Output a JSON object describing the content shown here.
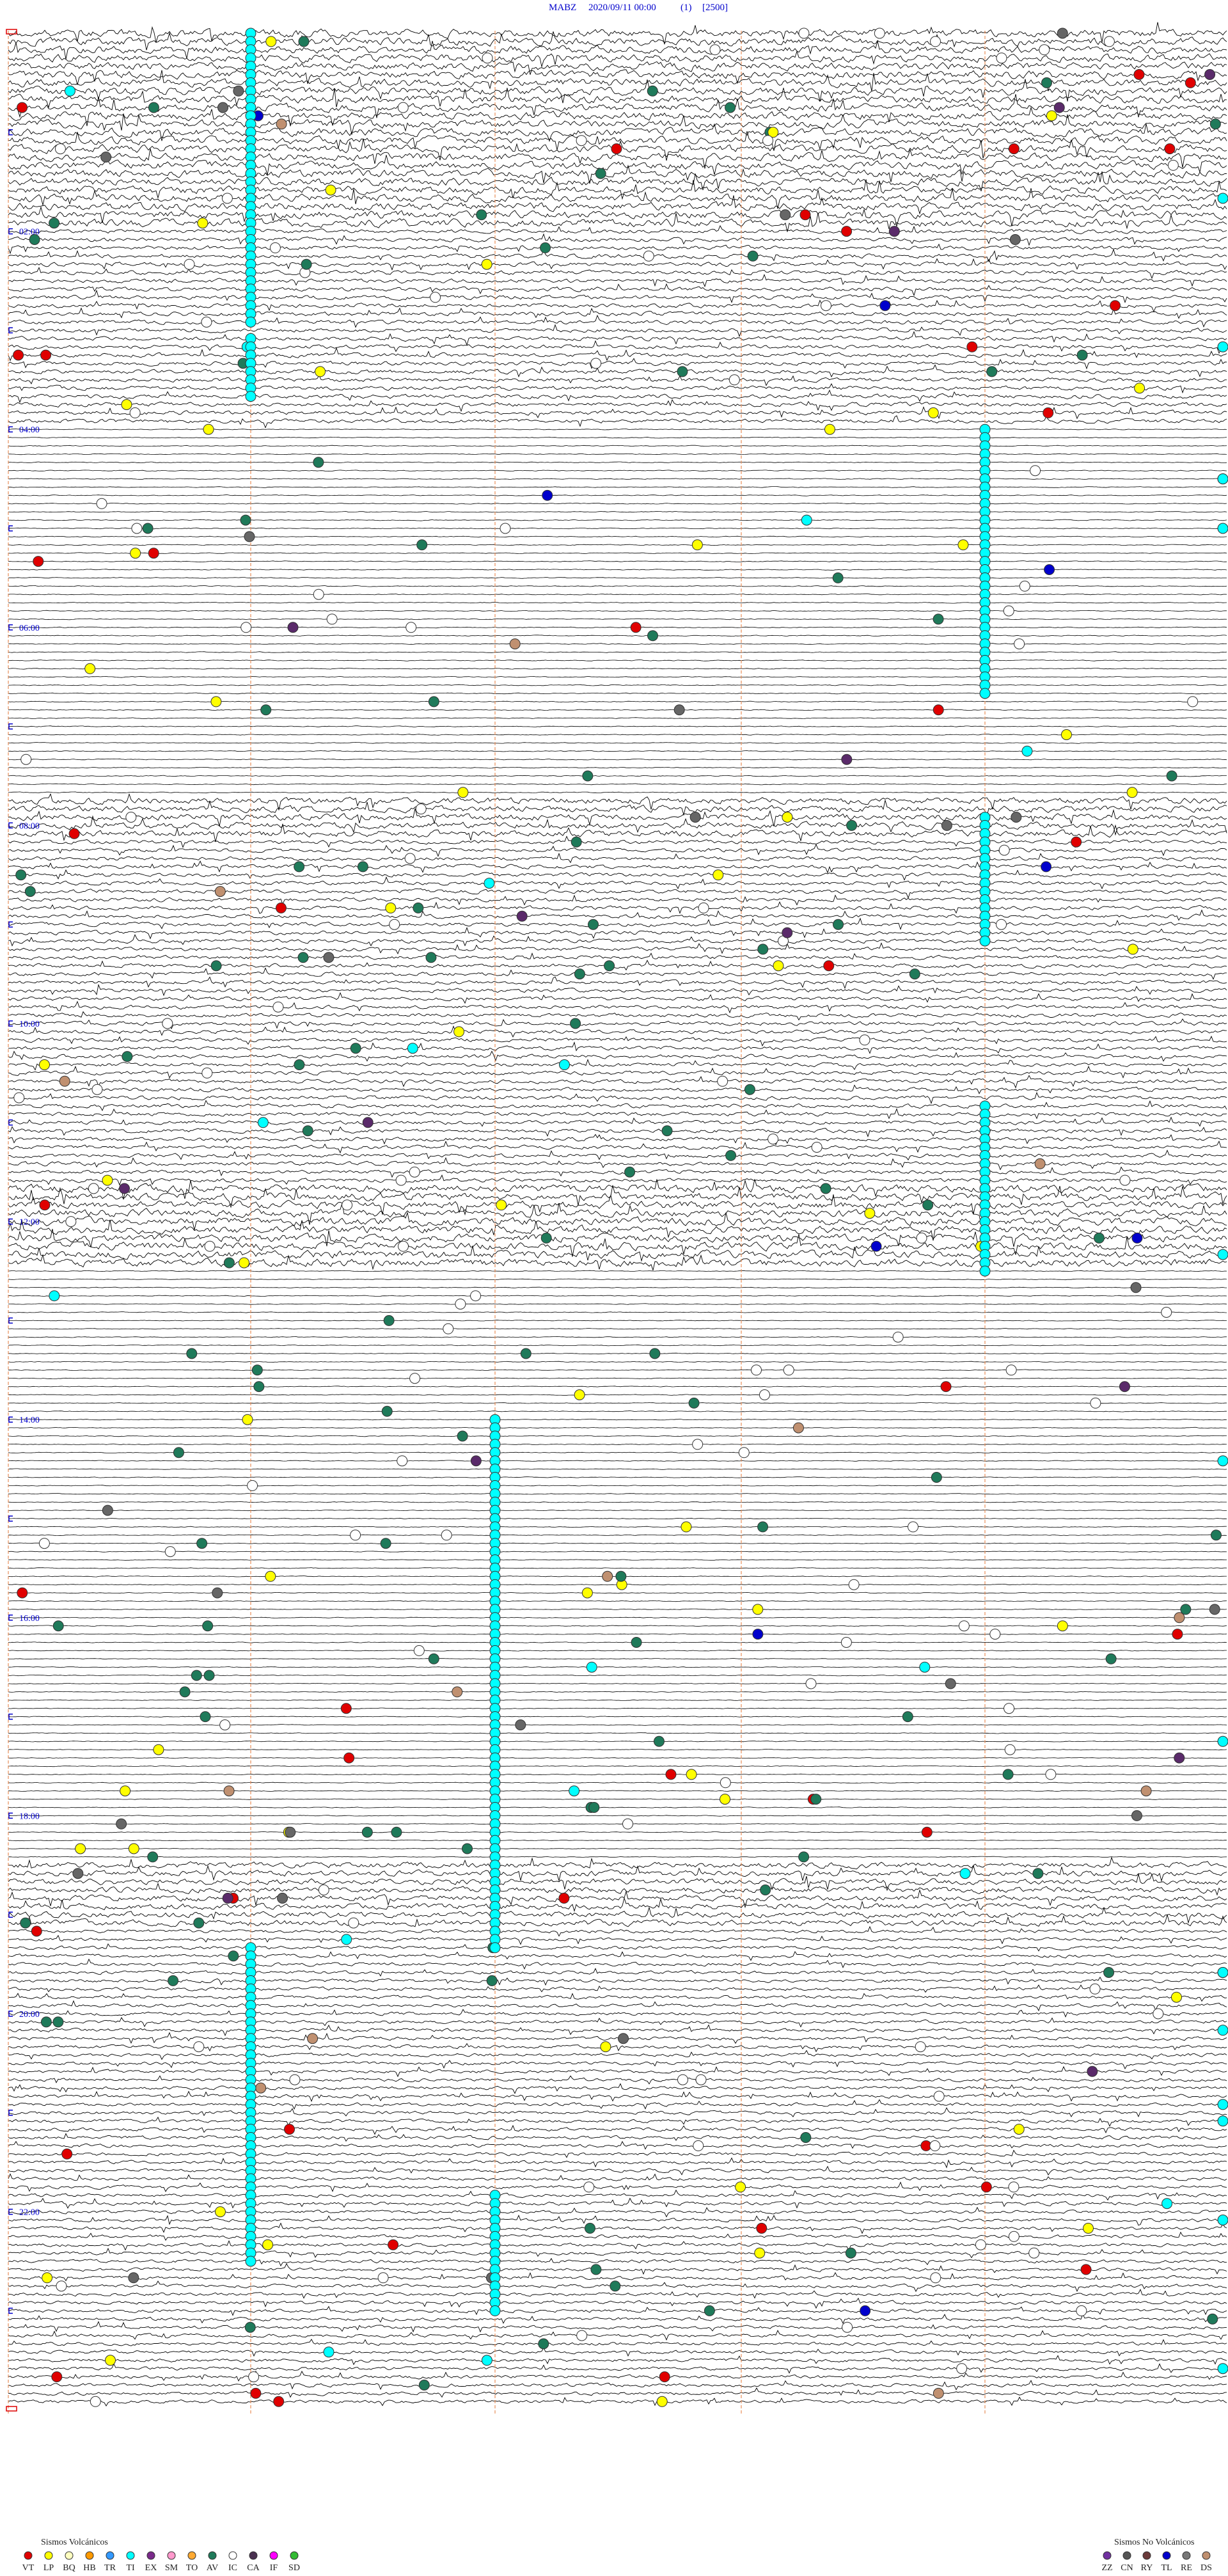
{
  "header": {
    "station": "MABZ",
    "datetime": "2020/09/11 00:00",
    "channel": "(1)",
    "scale": "[2500]"
  },
  "time_labels": [
    "02:00",
    "04:00",
    "06:00",
    "08:00",
    "10:00",
    "12:00",
    "14:00",
    "16:00",
    "18:00",
    "20:00",
    "22:00"
  ],
  "legend": {
    "volcanic": {
      "title": "Sismos Volcánicos",
      "items": [
        {
          "code": "VT",
          "color": "#e00000"
        },
        {
          "code": "LP",
          "color": "#ffff00"
        },
        {
          "code": "BQ",
          "color": "#ffffc0"
        },
        {
          "code": "HB",
          "color": "#ff9900"
        },
        {
          "code": "TR",
          "color": "#3399ff"
        },
        {
          "code": "TI",
          "color": "#00ffff"
        },
        {
          "code": "EX",
          "color": "#7a2a8a"
        },
        {
          "code": "SM",
          "color": "#ff99cc"
        },
        {
          "code": "TO",
          "color": "#ffaa33"
        },
        {
          "code": "AV",
          "color": "#1f7a5a"
        },
        {
          "code": "IC",
          "color": "#ffffff"
        },
        {
          "code": "CA",
          "color": "#4a3050"
        },
        {
          "code": "IF",
          "color": "#ff00ff"
        },
        {
          "code": "SD",
          "color": "#33bb33"
        }
      ]
    },
    "non_volcanic": {
      "title": "Sismos No Volcánicos",
      "items": [
        {
          "code": "ZZ",
          "color": "#7030a0"
        },
        {
          "code": "CN",
          "color": "#555555"
        },
        {
          "code": "RY",
          "color": "#6b3a3a"
        },
        {
          "code": "TL",
          "color": "#0000cc"
        },
        {
          "code": "RE",
          "color": "#777777"
        },
        {
          "code": "DS",
          "color": "#c09070"
        }
      ]
    }
  }
}
